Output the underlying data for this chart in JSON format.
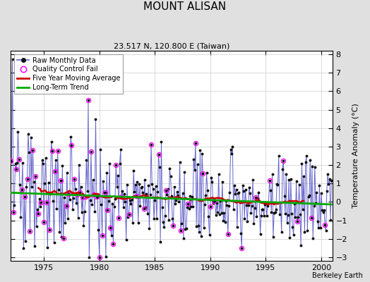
{
  "title": "MOUNT ALISAN",
  "subtitle": "23.517 N, 120.800 E (Taiwan)",
  "ylabel": "Temperature Anomaly (°C)",
  "xlabel_years": [
    1975,
    1980,
    1985,
    1990,
    1995,
    2000
  ],
  "ylim": [
    -3.2,
    8.2
  ],
  "xlim": [
    1972.0,
    2001.0
  ],
  "yticks": [
    -3,
    -2,
    -1,
    0,
    1,
    2,
    3,
    4,
    5,
    6,
    7,
    8
  ],
  "background_color": "#e0e0e0",
  "plot_bg_color": "#ffffff",
  "line_color": "#6666cc",
  "qc_color": "#ff00ff",
  "ma_color": "#cc0000",
  "trend_color": "#00aa00",
  "watermark": "Berkeley Earth",
  "seed": 137
}
